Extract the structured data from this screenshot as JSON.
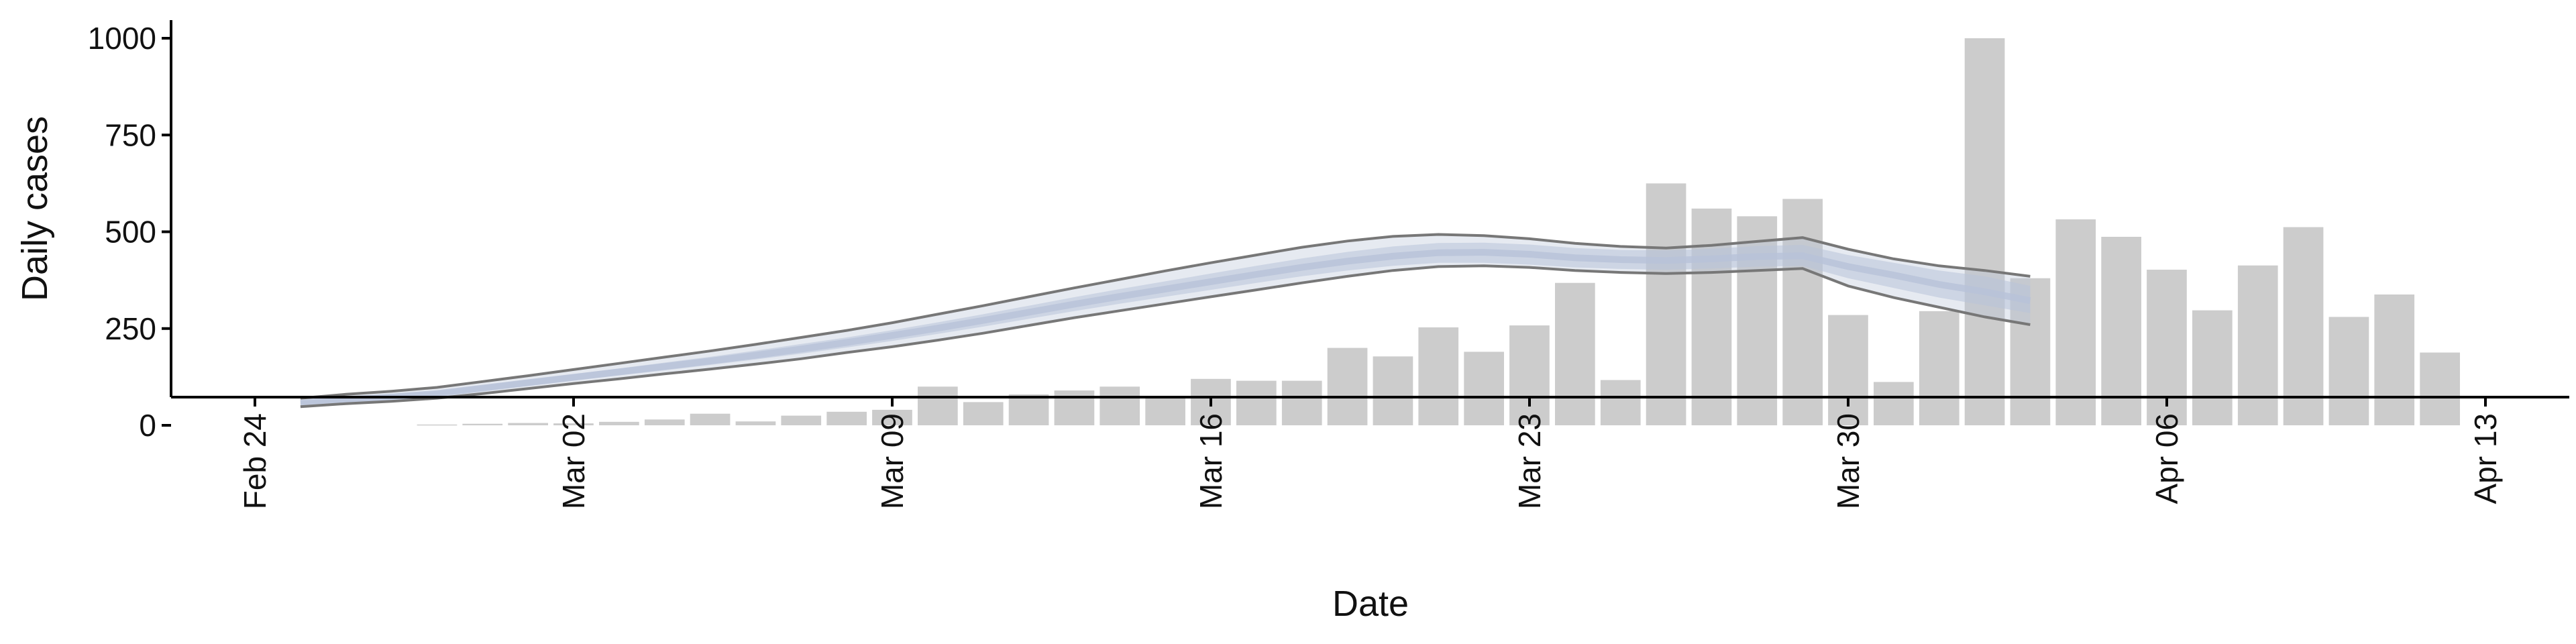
{
  "chart_data": {
    "type": "bar",
    "xlabel": "Date",
    "ylabel": "Daily cases",
    "x_range": [
      "2020-02-24",
      "2020-04-13"
    ],
    "ylim": [
      -40,
      1010
    ],
    "grid": false,
    "legend": "none",
    "x_ticks": [
      {
        "date": "2020-02-24",
        "label": "Feb 24"
      },
      {
        "date": "2020-03-02",
        "label": "Mar 02"
      },
      {
        "date": "2020-03-09",
        "label": "Mar 09"
      },
      {
        "date": "2020-03-16",
        "label": "Mar 16"
      },
      {
        "date": "2020-03-23",
        "label": "Mar 23"
      },
      {
        "date": "2020-03-30",
        "label": "Mar 30"
      },
      {
        "date": "2020-04-06",
        "label": "Apr 06"
      },
      {
        "date": "2020-04-13",
        "label": "Apr 13"
      }
    ],
    "y_ticks": [
      {
        "value": 0,
        "label": "0"
      },
      {
        "value": 250,
        "label": "250"
      },
      {
        "value": 500,
        "label": "500"
      },
      {
        "value": 750,
        "label": "750"
      },
      {
        "value": 1000,
        "label": "1000"
      }
    ],
    "bars": {
      "color": "#cccccc",
      "dates": [
        "2020-02-28",
        "2020-02-29",
        "2020-03-01",
        "2020-03-02",
        "2020-03-03",
        "2020-03-04",
        "2020-03-05",
        "2020-03-06",
        "2020-03-07",
        "2020-03-08",
        "2020-03-09",
        "2020-03-10",
        "2020-03-11",
        "2020-03-12",
        "2020-03-13",
        "2020-03-14",
        "2020-03-15",
        "2020-03-16",
        "2020-03-17",
        "2020-03-18",
        "2020-03-19",
        "2020-03-20",
        "2020-03-21",
        "2020-03-22",
        "2020-03-23",
        "2020-03-24",
        "2020-03-25",
        "2020-03-26",
        "2020-03-27",
        "2020-03-28",
        "2020-03-29",
        "2020-03-30",
        "2020-03-31",
        "2020-04-01",
        "2020-04-02",
        "2020-04-03",
        "2020-04-04",
        "2020-04-05",
        "2020-04-06",
        "2020-04-07",
        "2020-04-08",
        "2020-04-09",
        "2020-04-10",
        "2020-04-11",
        "2020-04-12"
      ],
      "values": [
        2,
        4,
        6,
        5,
        9,
        15,
        30,
        10,
        25,
        35,
        40,
        100,
        60,
        80,
        90,
        100,
        70,
        120,
        115,
        115,
        200,
        178,
        253,
        190,
        258,
        368,
        117,
        625,
        560,
        540,
        585,
        285,
        112,
        295,
        1000,
        380,
        532,
        487,
        402,
        297,
        413,
        512,
        280,
        338,
        188
      ]
    },
    "estimate": {
      "band_color": "#b8c2d8",
      "outer_line_color": "#777777",
      "dates": [
        "2020-02-25",
        "2020-02-26",
        "2020-02-27",
        "2020-02-28",
        "2020-02-29",
        "2020-03-01",
        "2020-03-02",
        "2020-03-03",
        "2020-03-04",
        "2020-03-05",
        "2020-03-06",
        "2020-03-07",
        "2020-03-08",
        "2020-03-09",
        "2020-03-10",
        "2020-03-11",
        "2020-03-12",
        "2020-03-13",
        "2020-03-14",
        "2020-03-15",
        "2020-03-16",
        "2020-03-17",
        "2020-03-18",
        "2020-03-19",
        "2020-03-20",
        "2020-03-21",
        "2020-03-22",
        "2020-03-23",
        "2020-03-24",
        "2020-03-25",
        "2020-03-26",
        "2020-03-27",
        "2020-03-28",
        "2020-03-29",
        "2020-03-30",
        "2020-03-31",
        "2020-04-01",
        "2020-04-02",
        "2020-04-03"
      ],
      "lower": [
        48,
        56,
        62,
        70,
        82,
        95,
        108,
        120,
        133,
        145,
        158,
        172,
        188,
        203,
        220,
        238,
        258,
        278,
        296,
        314,
        332,
        350,
        368,
        385,
        400,
        410,
        412,
        408,
        400,
        395,
        392,
        395,
        400,
        405,
        360,
        330,
        305,
        280,
        260
      ],
      "lower_mid": [
        53,
        60,
        67,
        76,
        89,
        102,
        116,
        129,
        142,
        156,
        170,
        185,
        201,
        218,
        236,
        255,
        275,
        295,
        314,
        332,
        350,
        368,
        385,
        400,
        412,
        420,
        420,
        415,
        408,
        404,
        402,
        405,
        410,
        412,
        380,
        355,
        330,
        310,
        290
      ],
      "median": [
        58,
        66,
        73,
        82,
        96,
        110,
        124,
        138,
        152,
        166,
        181,
        197,
        214,
        232,
        251,
        271,
        292,
        313,
        333,
        352,
        371,
        390,
        408,
        424,
        437,
        446,
        447,
        442,
        433,
        428,
        426,
        430,
        436,
        438,
        410,
        388,
        364,
        345,
        322
      ],
      "upper_mid": [
        63,
        72,
        79,
        88,
        103,
        118,
        132,
        147,
        162,
        177,
        193,
        210,
        227,
        246,
        266,
        287,
        309,
        331,
        352,
        372,
        392,
        412,
        431,
        448,
        462,
        471,
        472,
        467,
        458,
        453,
        452,
        456,
        463,
        466,
        440,
        420,
        400,
        385,
        360
      ],
      "upper": [
        70,
        80,
        88,
        98,
        113,
        128,
        144,
        160,
        176,
        192,
        209,
        227,
        245,
        265,
        287,
        309,
        332,
        355,
        377,
        399,
        420,
        440,
        460,
        476,
        488,
        493,
        490,
        482,
        470,
        462,
        458,
        465,
        475,
        485,
        455,
        430,
        412,
        400,
        385
      ]
    }
  }
}
